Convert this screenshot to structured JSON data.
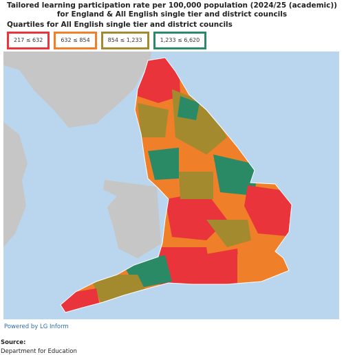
{
  "header": {
    "title": "Tailored learning participation rate per 100,000 population (2024/25 (academic)) for England & All English single tier and district councils",
    "subtitle": "Quartiles for All English single tier and district councils"
  },
  "legend": [
    {
      "label": "217 ≤ 632",
      "color": "#e8343a"
    },
    {
      "label": "632 ≤ 854",
      "color": "#f07f2a"
    },
    {
      "label": "854 ≤ 1,233",
      "color": "#a38a2e"
    },
    {
      "label": "1,233 ≤ 6,620",
      "color": "#2b8a66"
    }
  ],
  "footer": {
    "powered": "Powered by LG Inform",
    "source_label": "Source:",
    "source": "Department for Education"
  }
}
